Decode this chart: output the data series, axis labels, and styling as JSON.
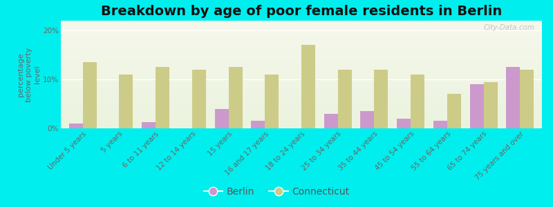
{
  "title": "Breakdown by age of poor female residents in Berlin",
  "ylabel": "percentage\nbelow poverty\nlevel",
  "categories": [
    "Under 5 years",
    "5 years",
    "6 to 11 years",
    "12 to 14 years",
    "15 years",
    "16 and 17 years",
    "18 to 24 years",
    "25 to 34 years",
    "35 to 44 years",
    "45 to 54 years",
    "55 to 64 years",
    "65 to 74 years",
    "75 years and over"
  ],
  "berlin": [
    1.0,
    0.0,
    1.2,
    0.0,
    4.0,
    1.5,
    0.0,
    3.0,
    3.5,
    2.0,
    1.5,
    9.0,
    12.5
  ],
  "connecticut": [
    13.5,
    11.0,
    12.5,
    12.0,
    12.5,
    11.0,
    17.0,
    12.0,
    12.0,
    11.0,
    7.0,
    9.5,
    12.0
  ],
  "berlin_color": "#cc99cc",
  "connecticut_color": "#cccc88",
  "background_color": "#00eeee",
  "ylim": [
    0,
    22
  ],
  "yticks": [
    0,
    10,
    20
  ],
  "ytick_labels": [
    "0%",
    "10%",
    "20%"
  ],
  "title_fontsize": 14,
  "axis_label_fontsize": 8,
  "tick_label_fontsize": 7.5,
  "legend_fontsize": 10,
  "bar_width": 0.38,
  "watermark": "City-Data.com"
}
